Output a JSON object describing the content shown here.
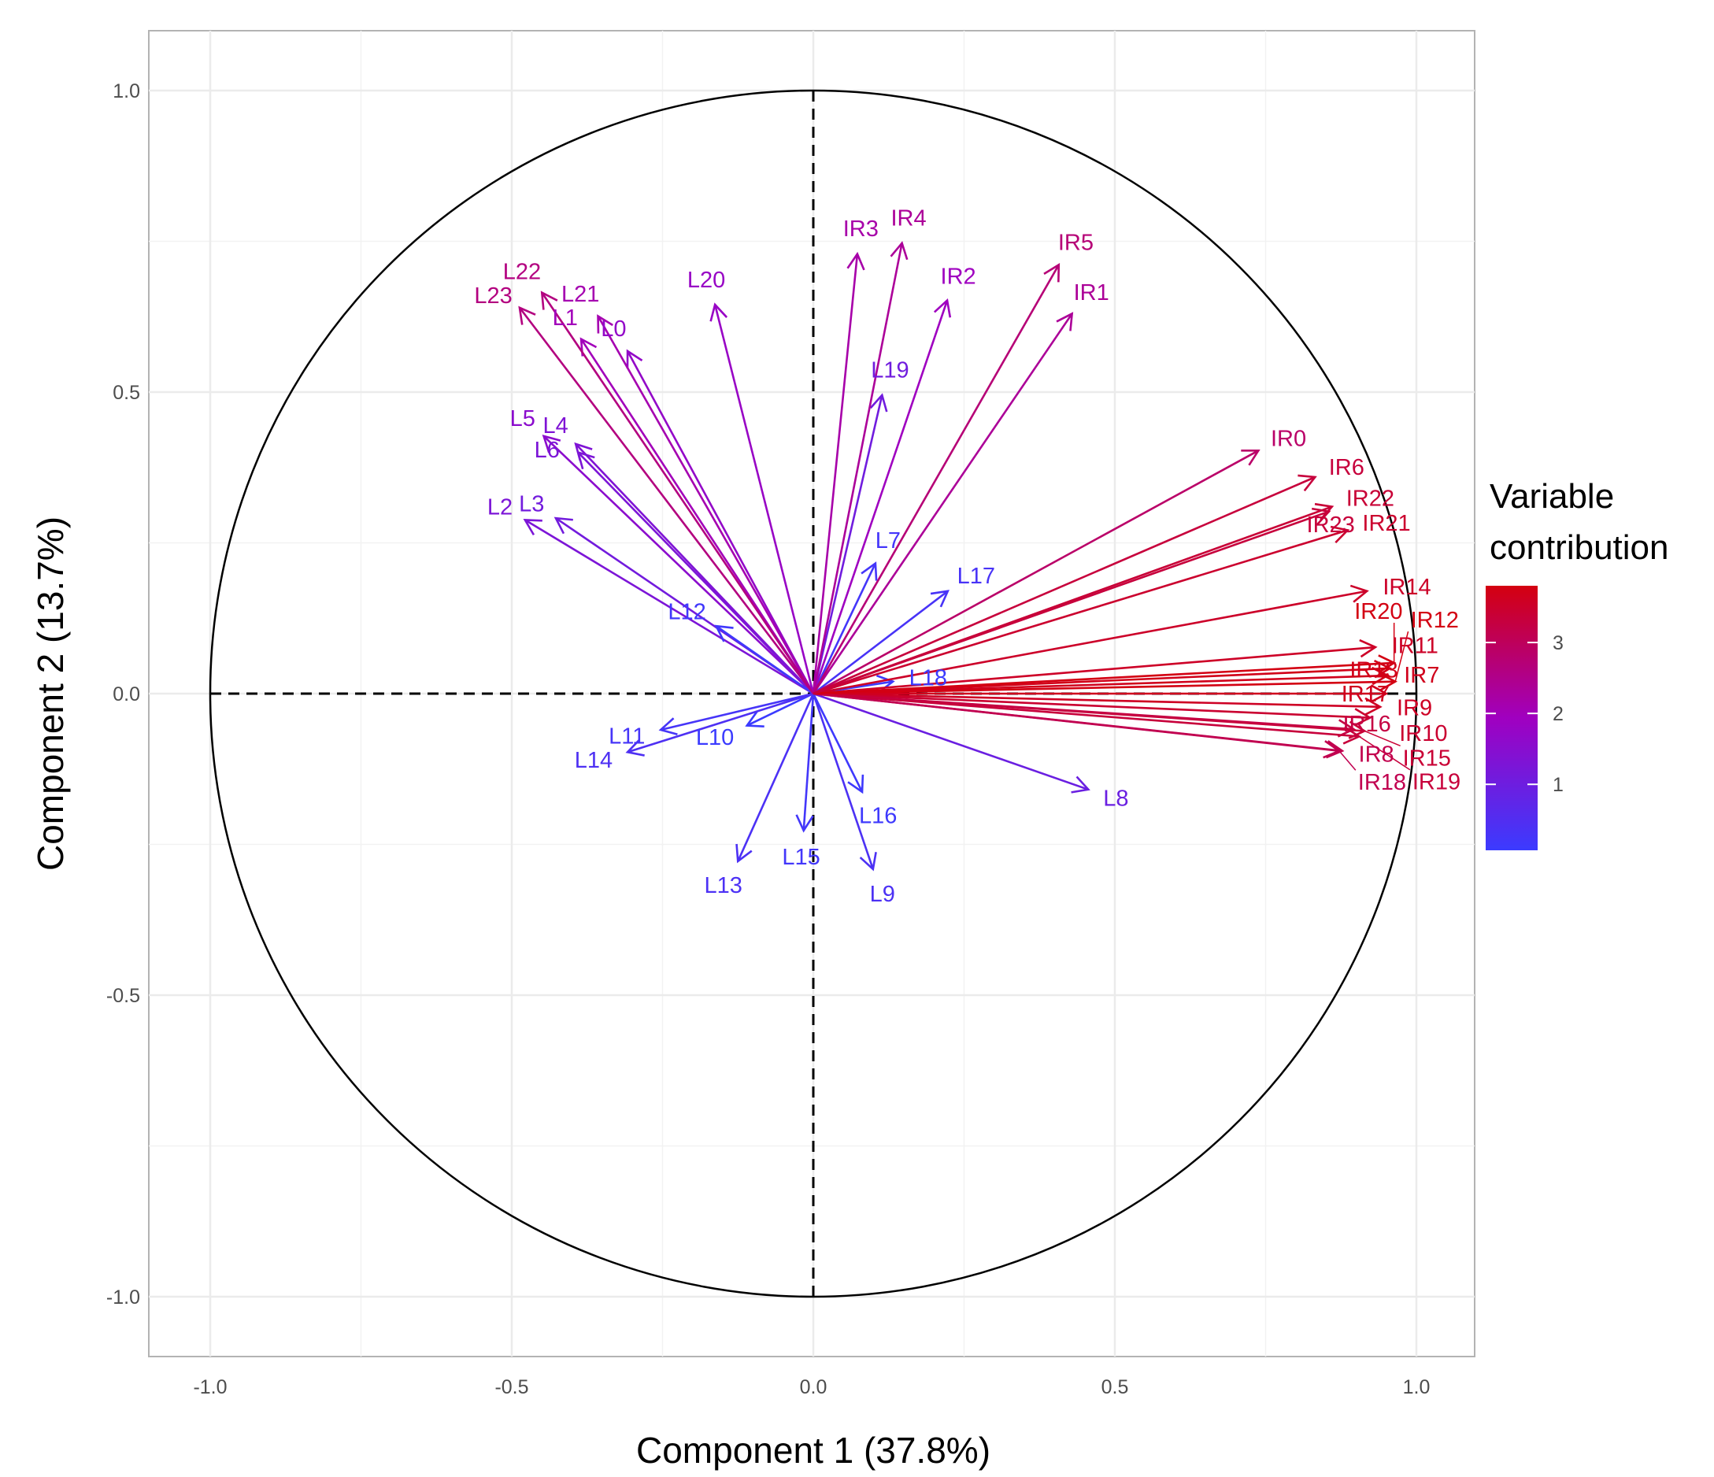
{
  "chart_data": {
    "type": "scatter",
    "subtype": "pca-variable-correlation-circle",
    "xlabel": "Component 1 (37.8%)",
    "ylabel": "Component 2 (13.7%)",
    "xlim": [
      -1.1,
      1.1
    ],
    "ylim": [
      -1.1,
      1.1
    ],
    "xticks": [
      "-1.0",
      "-0.5",
      "0.0",
      "0.5",
      "1.0"
    ],
    "yticks": [
      "-1.0",
      "-0.5",
      "0.0",
      "0.5",
      "1.0"
    ],
    "tick_values": [
      -1.0,
      -0.5,
      0.0,
      0.5,
      1.0
    ],
    "grid": true,
    "legend": {
      "title_line1": "Variable",
      "title_line2": "contribution",
      "placement": "right",
      "ticks": [
        "1",
        "2",
        "3"
      ],
      "tick_values": [
        1,
        2,
        3
      ],
      "range": [
        0.07,
        3.8
      ],
      "colors": {
        "low": "#3b3bff",
        "mid": "#a000c0",
        "high": "#d4000f"
      }
    },
    "variables": [
      {
        "name": "L0",
        "x": -0.308,
        "y": 0.568
      },
      {
        "name": "L1",
        "x": -0.385,
        "y": 0.588
      },
      {
        "name": "L2",
        "x": -0.478,
        "y": 0.288
      },
      {
        "name": "L3",
        "x": -0.427,
        "y": 0.291
      },
      {
        "name": "L4",
        "x": -0.394,
        "y": 0.414
      },
      {
        "name": "L5",
        "x": -0.447,
        "y": 0.427
      },
      {
        "name": "L6",
        "x": -0.39,
        "y": 0.4
      },
      {
        "name": "L7",
        "x": 0.103,
        "y": 0.216
      },
      {
        "name": "L8",
        "x": 0.456,
        "y": -0.159
      },
      {
        "name": "L9",
        "x": 0.099,
        "y": -0.291
      },
      {
        "name": "L10",
        "x": -0.11,
        "y": -0.053
      },
      {
        "name": "L11",
        "x": -0.253,
        "y": -0.06
      },
      {
        "name": "L12",
        "x": -0.161,
        "y": 0.112
      },
      {
        "name": "L13",
        "x": -0.125,
        "y": -0.278
      },
      {
        "name": "L14",
        "x": -0.308,
        "y": -0.097
      },
      {
        "name": "L15",
        "x": -0.016,
        "y": -0.227
      },
      {
        "name": "L16",
        "x": 0.081,
        "y": -0.163
      },
      {
        "name": "L17",
        "x": 0.223,
        "y": 0.17
      },
      {
        "name": "L18",
        "x": 0.132,
        "y": 0.02
      },
      {
        "name": "L19",
        "x": 0.114,
        "y": 0.495
      },
      {
        "name": "L20",
        "x": -0.163,
        "y": 0.645
      },
      {
        "name": "L21",
        "x": -0.357,
        "y": 0.626
      },
      {
        "name": "L22",
        "x": -0.45,
        "y": 0.665
      },
      {
        "name": "L23",
        "x": -0.487,
        "y": 0.64
      },
      {
        "name": "IR0",
        "x": 0.738,
        "y": 0.403
      },
      {
        "name": "IR1",
        "x": 0.429,
        "y": 0.63
      },
      {
        "name": "IR2",
        "x": 0.222,
        "y": 0.652
      },
      {
        "name": "IR3",
        "x": 0.073,
        "y": 0.729
      },
      {
        "name": "IR4",
        "x": 0.147,
        "y": 0.747
      },
      {
        "name": "IR5",
        "x": 0.407,
        "y": 0.711
      },
      {
        "name": "IR6",
        "x": 0.832,
        "y": 0.359
      },
      {
        "name": "IR7",
        "x": 0.952,
        "y": 0.03
      },
      {
        "name": "IR8",
        "x": 0.877,
        "y": -0.095
      },
      {
        "name": "IR9",
        "x": 0.94,
        "y": -0.022
      },
      {
        "name": "IR10",
        "x": 0.923,
        "y": -0.04
      },
      {
        "name": "IR11",
        "x": 0.932,
        "y": 0.077
      },
      {
        "name": "IR12",
        "x": 0.965,
        "y": 0.02
      },
      {
        "name": "IR13",
        "x": 0.956,
        "y": 0.042
      },
      {
        "name": "IR14",
        "x": 0.918,
        "y": 0.17
      },
      {
        "name": "IR15",
        "x": 0.914,
        "y": -0.062
      },
      {
        "name": "IR16",
        "x": 0.896,
        "y": -0.059
      },
      {
        "name": "IR17",
        "x": 0.95,
        "y": 0.0
      },
      {
        "name": "IR18",
        "x": 0.872,
        "y": -0.095
      },
      {
        "name": "IR19",
        "x": 0.905,
        "y": -0.071
      },
      {
        "name": "IR20",
        "x": 0.963,
        "y": 0.051
      },
      {
        "name": "IR21",
        "x": 0.886,
        "y": 0.271
      },
      {
        "name": "IR22",
        "x": 0.86,
        "y": 0.31
      },
      {
        "name": "IR23",
        "x": 0.855,
        "y": 0.302
      }
    ]
  }
}
